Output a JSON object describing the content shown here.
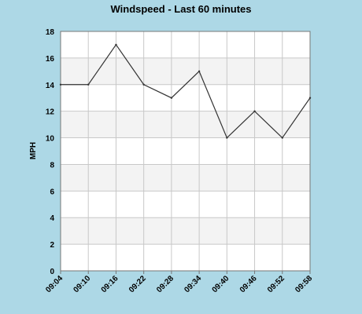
{
  "colors": {
    "page_background": "#add8e6",
    "plot_background": "#ffffff",
    "band_fill": "#f3f3f3",
    "grid_line": "#c8c8c8",
    "axis_line": "#777777",
    "series_line": "#333333"
  },
  "chart_data": {
    "type": "line",
    "title": "Windspeed - Last 60 minutes",
    "xlabel": "",
    "ylabel": "MPH",
    "x": [
      "09:04",
      "09:10",
      "09:16",
      "09:22",
      "09:28",
      "09:34",
      "09:40",
      "09:46",
      "09:52",
      "09:58"
    ],
    "series": [
      {
        "values": [
          14,
          14,
          17,
          14,
          13,
          15,
          10,
          12,
          10,
          13
        ]
      }
    ],
    "ylim": [
      0,
      18
    ],
    "yticks": [
      0,
      2,
      4,
      6,
      8,
      10,
      12,
      14,
      16,
      18
    ],
    "grid": true,
    "alternating_bands": true,
    "x_tick_rotation": "-45deg"
  }
}
